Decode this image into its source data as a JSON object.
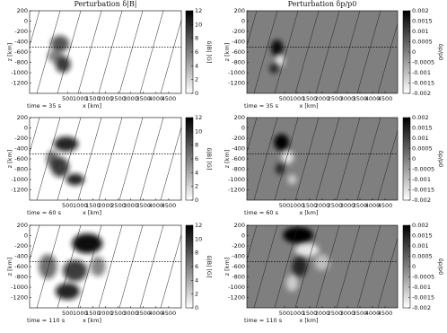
{
  "chart_data": [
    {
      "type": "heatmap",
      "title": "Perturbation δ|B|",
      "xlabel": "x [km]",
      "ylabel": "z [km]",
      "annotation": "time = 35 s",
      "xlim": [
        -1000,
        5000
      ],
      "xticks": [
        500,
        1000,
        1500,
        2000,
        2500,
        3000,
        3500,
        4000,
        4500
      ],
      "ylim": [
        -1400,
        200
      ],
      "yticks": [
        200,
        0,
        -200,
        -400,
        -600,
        -800,
        -1000,
        -1200
      ],
      "colorbar": {
        "label": "δ|B| [G]",
        "lim": [
          0,
          12
        ],
        "ticks": [
          0,
          2,
          4,
          6,
          8,
          10,
          12
        ]
      }
    },
    {
      "type": "heatmap",
      "title": "Perturbation δp/p0",
      "xlabel": "x [km]",
      "ylabel": "z [km]",
      "annotation": "time = 35 s",
      "xlim": [
        -1000,
        5000
      ],
      "xticks": [
        500,
        1000,
        1500,
        2000,
        2500,
        3000,
        3500,
        4000,
        4500
      ],
      "ylim": [
        -1400,
        200
      ],
      "yticks": [
        200,
        0,
        -200,
        -400,
        -600,
        -800,
        -1000,
        -1200
      ],
      "colorbar": {
        "label": "δp/p0",
        "lim": [
          -0.002,
          0.002
        ],
        "ticks": [
          0.002,
          0.0015,
          0.001,
          0.0005,
          0,
          -0.0005,
          -0.001,
          -0.0015,
          -0.002
        ]
      }
    },
    {
      "type": "heatmap",
      "xlabel": "x [km]",
      "ylabel": "z [km]",
      "annotation": "time = 60 s",
      "xlim": [
        -1000,
        5000
      ],
      "xticks": [
        500,
        1000,
        1500,
        2000,
        2500,
        3000,
        3500,
        4000,
        4500
      ],
      "ylim": [
        -1400,
        200
      ],
      "yticks": [
        200,
        0,
        -200,
        -400,
        -600,
        -800,
        -1000,
        -1200
      ],
      "colorbar": {
        "label": "δ|B| [G]",
        "lim": [
          0,
          12
        ],
        "ticks": [
          0,
          2,
          4,
          6,
          8,
          10,
          12
        ]
      }
    },
    {
      "type": "heatmap",
      "xlabel": "x [km]",
      "ylabel": "z [km]",
      "annotation": "time = 60 s",
      "xlim": [
        -1000,
        5000
      ],
      "xticks": [
        500,
        1000,
        1500,
        2000,
        2500,
        3000,
        3500,
        4000,
        4500
      ],
      "ylim": [
        -1400,
        200
      ],
      "yticks": [
        200,
        0,
        -200,
        -400,
        -600,
        -800,
        -1000,
        -1200
      ],
      "colorbar": {
        "label": "δp/p0",
        "lim": [
          -0.002,
          0.002
        ],
        "ticks": [
          0.002,
          0.0015,
          0.001,
          0.0005,
          0,
          -0.0005,
          -0.001,
          -0.0015,
          -0.002
        ]
      }
    },
    {
      "type": "heatmap",
      "xlabel": "x [km]",
      "ylabel": "z [km]",
      "annotation": "time = 110 s",
      "xlim": [
        -1000,
        5000
      ],
      "xticks": [
        500,
        1000,
        1500,
        2000,
        2500,
        3000,
        3500,
        4000,
        4500
      ],
      "ylim": [
        -1400,
        200
      ],
      "yticks": [
        200,
        0,
        -200,
        -400,
        -600,
        -800,
        -1000,
        -1200
      ],
      "colorbar": {
        "label": "δ|B| [G]",
        "lim": [
          0,
          12
        ],
        "ticks": [
          0,
          2,
          4,
          6,
          8,
          10,
          12
        ]
      }
    },
    {
      "type": "heatmap",
      "xlabel": "x [km]",
      "ylabel": "z [km]",
      "annotation": "time = 110 s",
      "xlim": [
        -1000,
        5000
      ],
      "xticks": [
        500,
        1000,
        1500,
        2000,
        2500,
        3000,
        3500,
        4000,
        4500
      ],
      "ylim": [
        -1400,
        200
      ],
      "yticks": [
        200,
        0,
        -200,
        -400,
        -600,
        -800,
        -1000,
        -1200
      ],
      "colorbar": {
        "label": "δp/p0",
        "lim": [
          -0.002,
          0.002
        ],
        "ticks": [
          0.002,
          0.0015,
          0.001,
          0.0005,
          0,
          -0.0005,
          -0.001,
          -0.0015,
          -0.002
        ]
      }
    }
  ]
}
